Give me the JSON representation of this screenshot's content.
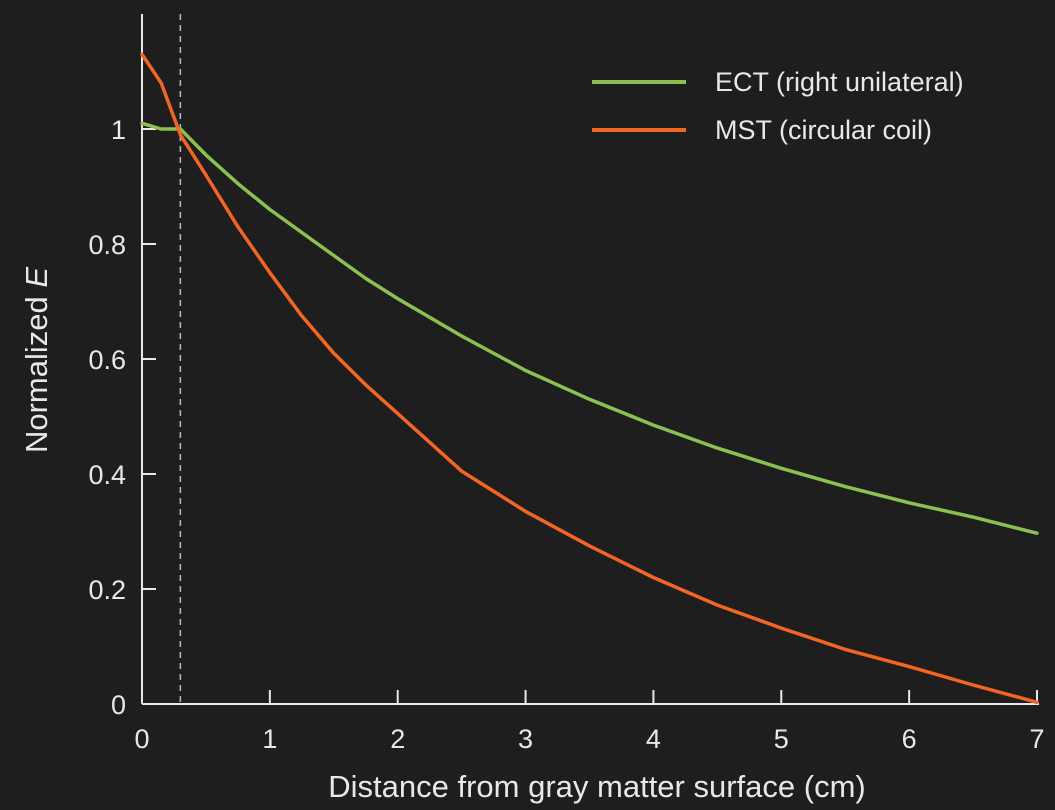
{
  "chart_data": {
    "type": "line",
    "xlabel": "Distance from gray matter surface (cm)",
    "ylabel_prefix": "Normalized ",
    "ylabel_var": "E",
    "xlim": [
      0,
      7
    ],
    "ylim": [
      0,
      1.1
    ],
    "xticks": [
      0,
      1,
      2,
      3,
      4,
      5,
      6,
      7
    ],
    "xtick_labels": [
      "0",
      "1",
      "2",
      "3",
      "4",
      "5",
      "6",
      "7"
    ],
    "yticks": [
      0,
      0.2,
      0.4,
      0.6,
      0.8,
      1
    ],
    "ytick_labels": [
      "0",
      "0.2",
      "0.4",
      "0.6",
      "0.8",
      "1"
    ],
    "reference_line_x": 0.3,
    "grid": false,
    "legend_position": "top-right",
    "series": [
      {
        "name": "ECT (right unilateral)",
        "color": "#8cc152",
        "x": [
          0,
          0.15,
          0.3,
          0.5,
          0.75,
          1,
          1.25,
          1.5,
          1.75,
          2,
          2.5,
          3,
          3.5,
          4,
          4.5,
          5,
          5.5,
          6,
          6.5,
          7
        ],
        "y": [
          1.01,
          1.0,
          1.0,
          0.955,
          0.905,
          0.86,
          0.82,
          0.78,
          0.74,
          0.705,
          0.64,
          0.58,
          0.53,
          0.485,
          0.445,
          0.41,
          0.378,
          0.35,
          0.325,
          0.297
        ]
      },
      {
        "name": "MST (circular coil)",
        "color": "#f26522",
        "x": [
          0,
          0.15,
          0.3,
          0.5,
          0.75,
          1,
          1.25,
          1.5,
          1.75,
          2,
          2.5,
          3,
          3.5,
          4,
          4.5,
          5,
          5.5,
          6,
          6.5,
          7
        ],
        "y": [
          1.13,
          1.08,
          0.99,
          0.92,
          0.83,
          0.75,
          0.675,
          0.61,
          0.555,
          0.505,
          0.405,
          0.335,
          0.275,
          0.22,
          0.172,
          0.132,
          0.095,
          0.065,
          0.033,
          0.003
        ]
      }
    ]
  }
}
